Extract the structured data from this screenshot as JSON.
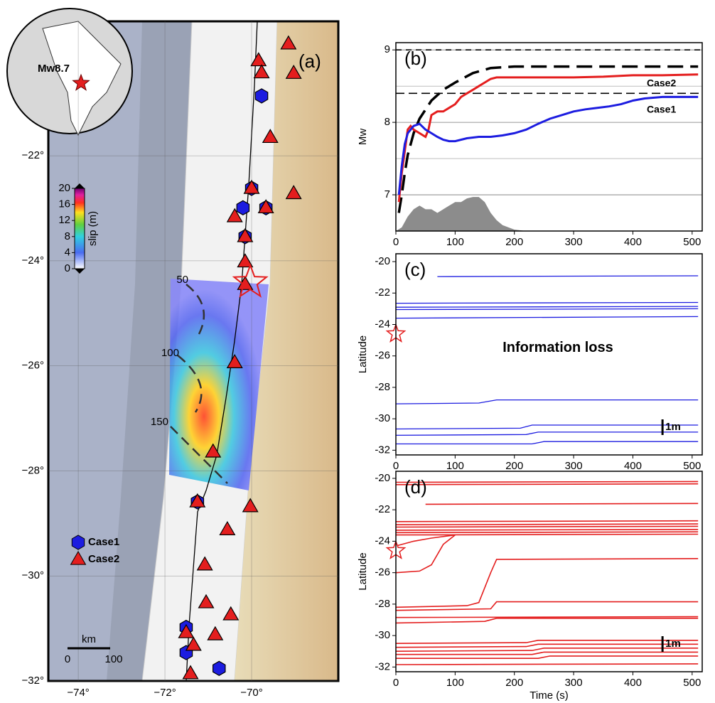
{
  "chart_data": [
    {
      "type": "map",
      "panel_label": "(a)",
      "xlim": [
        -74.69,
        -68.0
      ],
      "ylim": [
        -32,
        -19.44
      ],
      "xticks": [
        {
          "value": -74,
          "label": "−74°"
        },
        {
          "value": -72,
          "label": "−72°"
        },
        {
          "value": -70,
          "label": "−70°"
        }
      ],
      "yticks": [
        {
          "value": -22,
          "label": "−22°"
        },
        {
          "value": -24,
          "label": "−24°"
        },
        {
          "value": -26,
          "label": "−26°"
        },
        {
          "value": -28,
          "label": "−28°"
        },
        {
          "value": -30,
          "label": "−30°"
        },
        {
          "value": -32,
          "label": "−32°"
        }
      ],
      "series": [
        {
          "name": "Case1",
          "color": "#1c1ce0",
          "marker": "hexagon",
          "x": [
            -69.77,
            -70.0,
            -70.2,
            -69.67,
            -70.15,
            -71.25,
            -71.51,
            -71.51,
            -70.75
          ],
          "values": [
            -20.86,
            -22.62,
            -22.99,
            -22.99,
            -23.54,
            -28.59,
            -30.98,
            -31.46,
            -31.76
          ]
        },
        {
          "name": "Case2",
          "color": "#e41e1e",
          "marker": "triangle",
          "x": [
            -69.84,
            -69.77,
            -69.15,
            -69.03,
            -69.57,
            -70.0,
            -69.03,
            -69.67,
            -70.39,
            -70.15,
            -70.15,
            -70.15,
            -70.39,
            -70.89,
            -70.03,
            -71.25,
            -70.56,
            -71.08,
            -71.05,
            -70.48,
            -70.84,
            -71.51,
            -71.34,
            -71.41
          ],
          "values": [
            -20.19,
            -20.42,
            -19.87,
            -20.43,
            -21.65,
            -22.62,
            -22.72,
            -22.99,
            -23.16,
            -23.54,
            -24.02,
            -24.45,
            -25.94,
            -27.64,
            -28.68,
            -28.59,
            -29.12,
            -29.79,
            -30.51,
            -30.74,
            -31.12,
            -31.08,
            -31.32,
            -31.86
          ]
        }
      ],
      "epicenter": {
        "x": -70.03,
        "y": -24.41
      },
      "inset_label": "Mw8.7",
      "colorbar": {
        "label": "slip (m)",
        "lim": [
          0,
          20
        ],
        "ticks": [
          0,
          4,
          8,
          12,
          16,
          20
        ]
      },
      "depth_contours": [
        50,
        100,
        150
      ],
      "scale_bar": {
        "label": "km",
        "ticks": [
          0,
          100
        ]
      }
    },
    {
      "type": "line",
      "panel_label": "(b)",
      "ylabel": "Mw",
      "xlim": [
        0,
        517
      ],
      "ylim": [
        6.5,
        9.1
      ],
      "xticks": [
        0,
        100,
        200,
        300,
        400,
        500
      ],
      "yticks": [
        7,
        8,
        9
      ],
      "minor_yticks": [
        7.5,
        8.5
      ],
      "series": [
        {
          "name": "Case2",
          "color": "#e41e1e",
          "x": [
            5,
            10,
            15,
            20,
            25,
            30,
            40,
            50,
            55,
            60,
            70,
            80,
            90,
            100,
            110,
            120,
            130,
            140,
            150,
            160,
            170,
            200,
            250,
            300,
            350,
            400,
            450,
            510
          ],
          "values": [
            6.9,
            7.3,
            7.6,
            7.9,
            7.95,
            7.9,
            7.85,
            7.8,
            7.9,
            8.1,
            8.15,
            8.15,
            8.2,
            8.25,
            8.35,
            8.4,
            8.45,
            8.5,
            8.55,
            8.6,
            8.62,
            8.62,
            8.62,
            8.62,
            8.63,
            8.65,
            8.65,
            8.66
          ]
        },
        {
          "name": "Case1",
          "color": "#1c1ce0",
          "x": [
            5,
            10,
            15,
            20,
            30,
            40,
            50,
            60,
            70,
            80,
            90,
            100,
            120,
            140,
            160,
            180,
            200,
            220,
            240,
            260,
            280,
            300,
            320,
            340,
            360,
            380,
            400,
            420,
            450,
            510
          ],
          "values": [
            7.0,
            7.4,
            7.7,
            7.85,
            7.95,
            7.98,
            7.9,
            7.85,
            7.8,
            7.76,
            7.74,
            7.74,
            7.78,
            7.8,
            7.8,
            7.82,
            7.85,
            7.9,
            7.98,
            8.05,
            8.1,
            8.15,
            8.18,
            8.2,
            8.22,
            8.25,
            8.3,
            8.33,
            8.35,
            8.35
          ]
        }
      ],
      "reference_curve": {
        "color": "#000000",
        "x": [
          5,
          10,
          15,
          20,
          30,
          40,
          60,
          80,
          100,
          130,
          160,
          200,
          510
        ],
        "values": [
          6.75,
          7.0,
          7.3,
          7.55,
          7.85,
          8.05,
          8.3,
          8.45,
          8.55,
          8.68,
          8.75,
          8.77,
          8.77
        ]
      },
      "reference_levels": [
        9.0,
        8.4
      ],
      "moment_rate": {
        "color": "#8c8c8c",
        "x": [
          0,
          10,
          20,
          30,
          40,
          50,
          60,
          70,
          80,
          90,
          100,
          110,
          120,
          130,
          140,
          150,
          160,
          170,
          180,
          200,
          220
        ],
        "values": [
          6.5,
          6.55,
          6.7,
          6.8,
          6.85,
          6.8,
          6.8,
          6.75,
          6.8,
          6.85,
          6.9,
          6.9,
          6.95,
          6.97,
          6.97,
          6.9,
          6.75,
          6.65,
          6.58,
          6.52,
          6.5
        ]
      }
    },
    {
      "type": "station-lines",
      "panel_label": "(c)",
      "ylabel": "Latitude",
      "annotation": "Information loss",
      "scale_label": "1m",
      "color": "#1c1ce0",
      "epicenter_lat": -24.6,
      "xlim": [
        0,
        517
      ],
      "ylim": [
        -32.3,
        -19.5
      ],
      "xticks": [
        0,
        100,
        200,
        300,
        400,
        500
      ],
      "yticks": [
        -20,
        -22,
        -24,
        -26,
        -28,
        -30,
        -32
      ],
      "lines": [
        {
          "x": [
            70,
            510
          ],
          "values": [
            -20.95,
            -20.9
          ]
        },
        {
          "x": [
            0,
            510
          ],
          "values": [
            -22.65,
            -22.6
          ]
        },
        {
          "x": [
            0,
            510
          ],
          "values": [
            -22.9,
            -22.85
          ]
        },
        {
          "x": [
            0,
            510
          ],
          "values": [
            -23.05,
            -23.0
          ]
        },
        {
          "x": [
            0,
            510
          ],
          "values": [
            -23.6,
            -23.5
          ]
        },
        {
          "x": [
            0,
            140,
            170,
            510
          ],
          "values": [
            -29.05,
            -29.0,
            -28.8,
            -28.8
          ]
        },
        {
          "x": [
            0,
            210,
            230,
            510
          ],
          "values": [
            -30.65,
            -30.6,
            -30.4,
            -30.4
          ]
        },
        {
          "x": [
            0,
            220,
            240,
            510
          ],
          "values": [
            -31.05,
            -31.0,
            -30.85,
            -30.85
          ]
        },
        {
          "x": [
            0,
            230,
            250,
            510
          ],
          "values": [
            -31.6,
            -31.6,
            -31.45,
            -31.45
          ]
        }
      ]
    },
    {
      "type": "station-lines",
      "panel_label": "(d)",
      "ylabel": "Latitude",
      "xlabel": "Time (s)",
      "scale_label": "1m",
      "color": "#e41e1e",
      "epicenter_lat": -24.6,
      "xlim": [
        0,
        517
      ],
      "ylim": [
        -32.3,
        -19.55
      ],
      "xticks": [
        0,
        100,
        200,
        300,
        400,
        500
      ],
      "yticks": [
        -20,
        -22,
        -24,
        -26,
        -28,
        -30,
        -32
      ],
      "lines": [
        {
          "x": [
            0,
            510
          ],
          "values": [
            -20.25,
            -20.2
          ]
        },
        {
          "x": [
            0,
            510
          ],
          "values": [
            -20.4,
            -20.35
          ]
        },
        {
          "x": [
            50,
            510
          ],
          "values": [
            -21.65,
            -21.6
          ]
        },
        {
          "x": [
            0,
            510
          ],
          "values": [
            -22.75,
            -22.7
          ]
        },
        {
          "x": [
            0,
            510
          ],
          "values": [
            -22.95,
            -22.9
          ]
        },
        {
          "x": [
            0,
            510
          ],
          "values": [
            -23.1,
            -23.05
          ]
        },
        {
          "x": [
            0,
            510
          ],
          "values": [
            -23.3,
            -23.25
          ]
        },
        {
          "x": [
            0,
            510
          ],
          "values": [
            -23.45,
            -23.4
          ]
        },
        {
          "x": [
            0,
            510
          ],
          "values": [
            -23.6,
            -23.55
          ]
        },
        {
          "x": [
            0,
            30,
            60,
            100
          ],
          "values": [
            -24.3,
            -24.0,
            -23.8,
            -23.6
          ]
        },
        {
          "x": [
            0,
            40,
            60,
            80,
            100
          ],
          "values": [
            -26.0,
            -25.9,
            -25.5,
            -24.2,
            -23.6
          ]
        },
        {
          "x": [
            0,
            120,
            140,
            160,
            170,
            510
          ],
          "values": [
            -28.2,
            -28.1,
            -27.9,
            -26.0,
            -25.15,
            -25.1
          ]
        },
        {
          "x": [
            0,
            160,
            170,
            510
          ],
          "values": [
            -28.4,
            -28.3,
            -27.85,
            -27.85
          ]
        },
        {
          "x": [
            0,
            510
          ],
          "values": [
            -28.85,
            -28.8
          ]
        },
        {
          "x": [
            0,
            150,
            170,
            510
          ],
          "values": [
            -29.2,
            -29.1,
            -28.9,
            -28.9
          ]
        },
        {
          "x": [
            0,
            220,
            240,
            510
          ],
          "values": [
            -30.5,
            -30.45,
            -30.3,
            -30.3
          ]
        },
        {
          "x": [
            0,
            220,
            240,
            510
          ],
          "values": [
            -30.75,
            -30.7,
            -30.55,
            -30.55
          ]
        },
        {
          "x": [
            0,
            230,
            250,
            510
          ],
          "values": [
            -31.0,
            -30.95,
            -30.8,
            -30.8
          ]
        },
        {
          "x": [
            0,
            230,
            250,
            510
          ],
          "values": [
            -31.2,
            -31.2,
            -31.05,
            -31.05
          ]
        },
        {
          "x": [
            0,
            240,
            260,
            510
          ],
          "values": [
            -31.45,
            -31.45,
            -31.3,
            -31.3
          ]
        },
        {
          "x": [
            0,
            510
          ],
          "values": [
            -31.85,
            -31.8
          ]
        }
      ]
    }
  ]
}
